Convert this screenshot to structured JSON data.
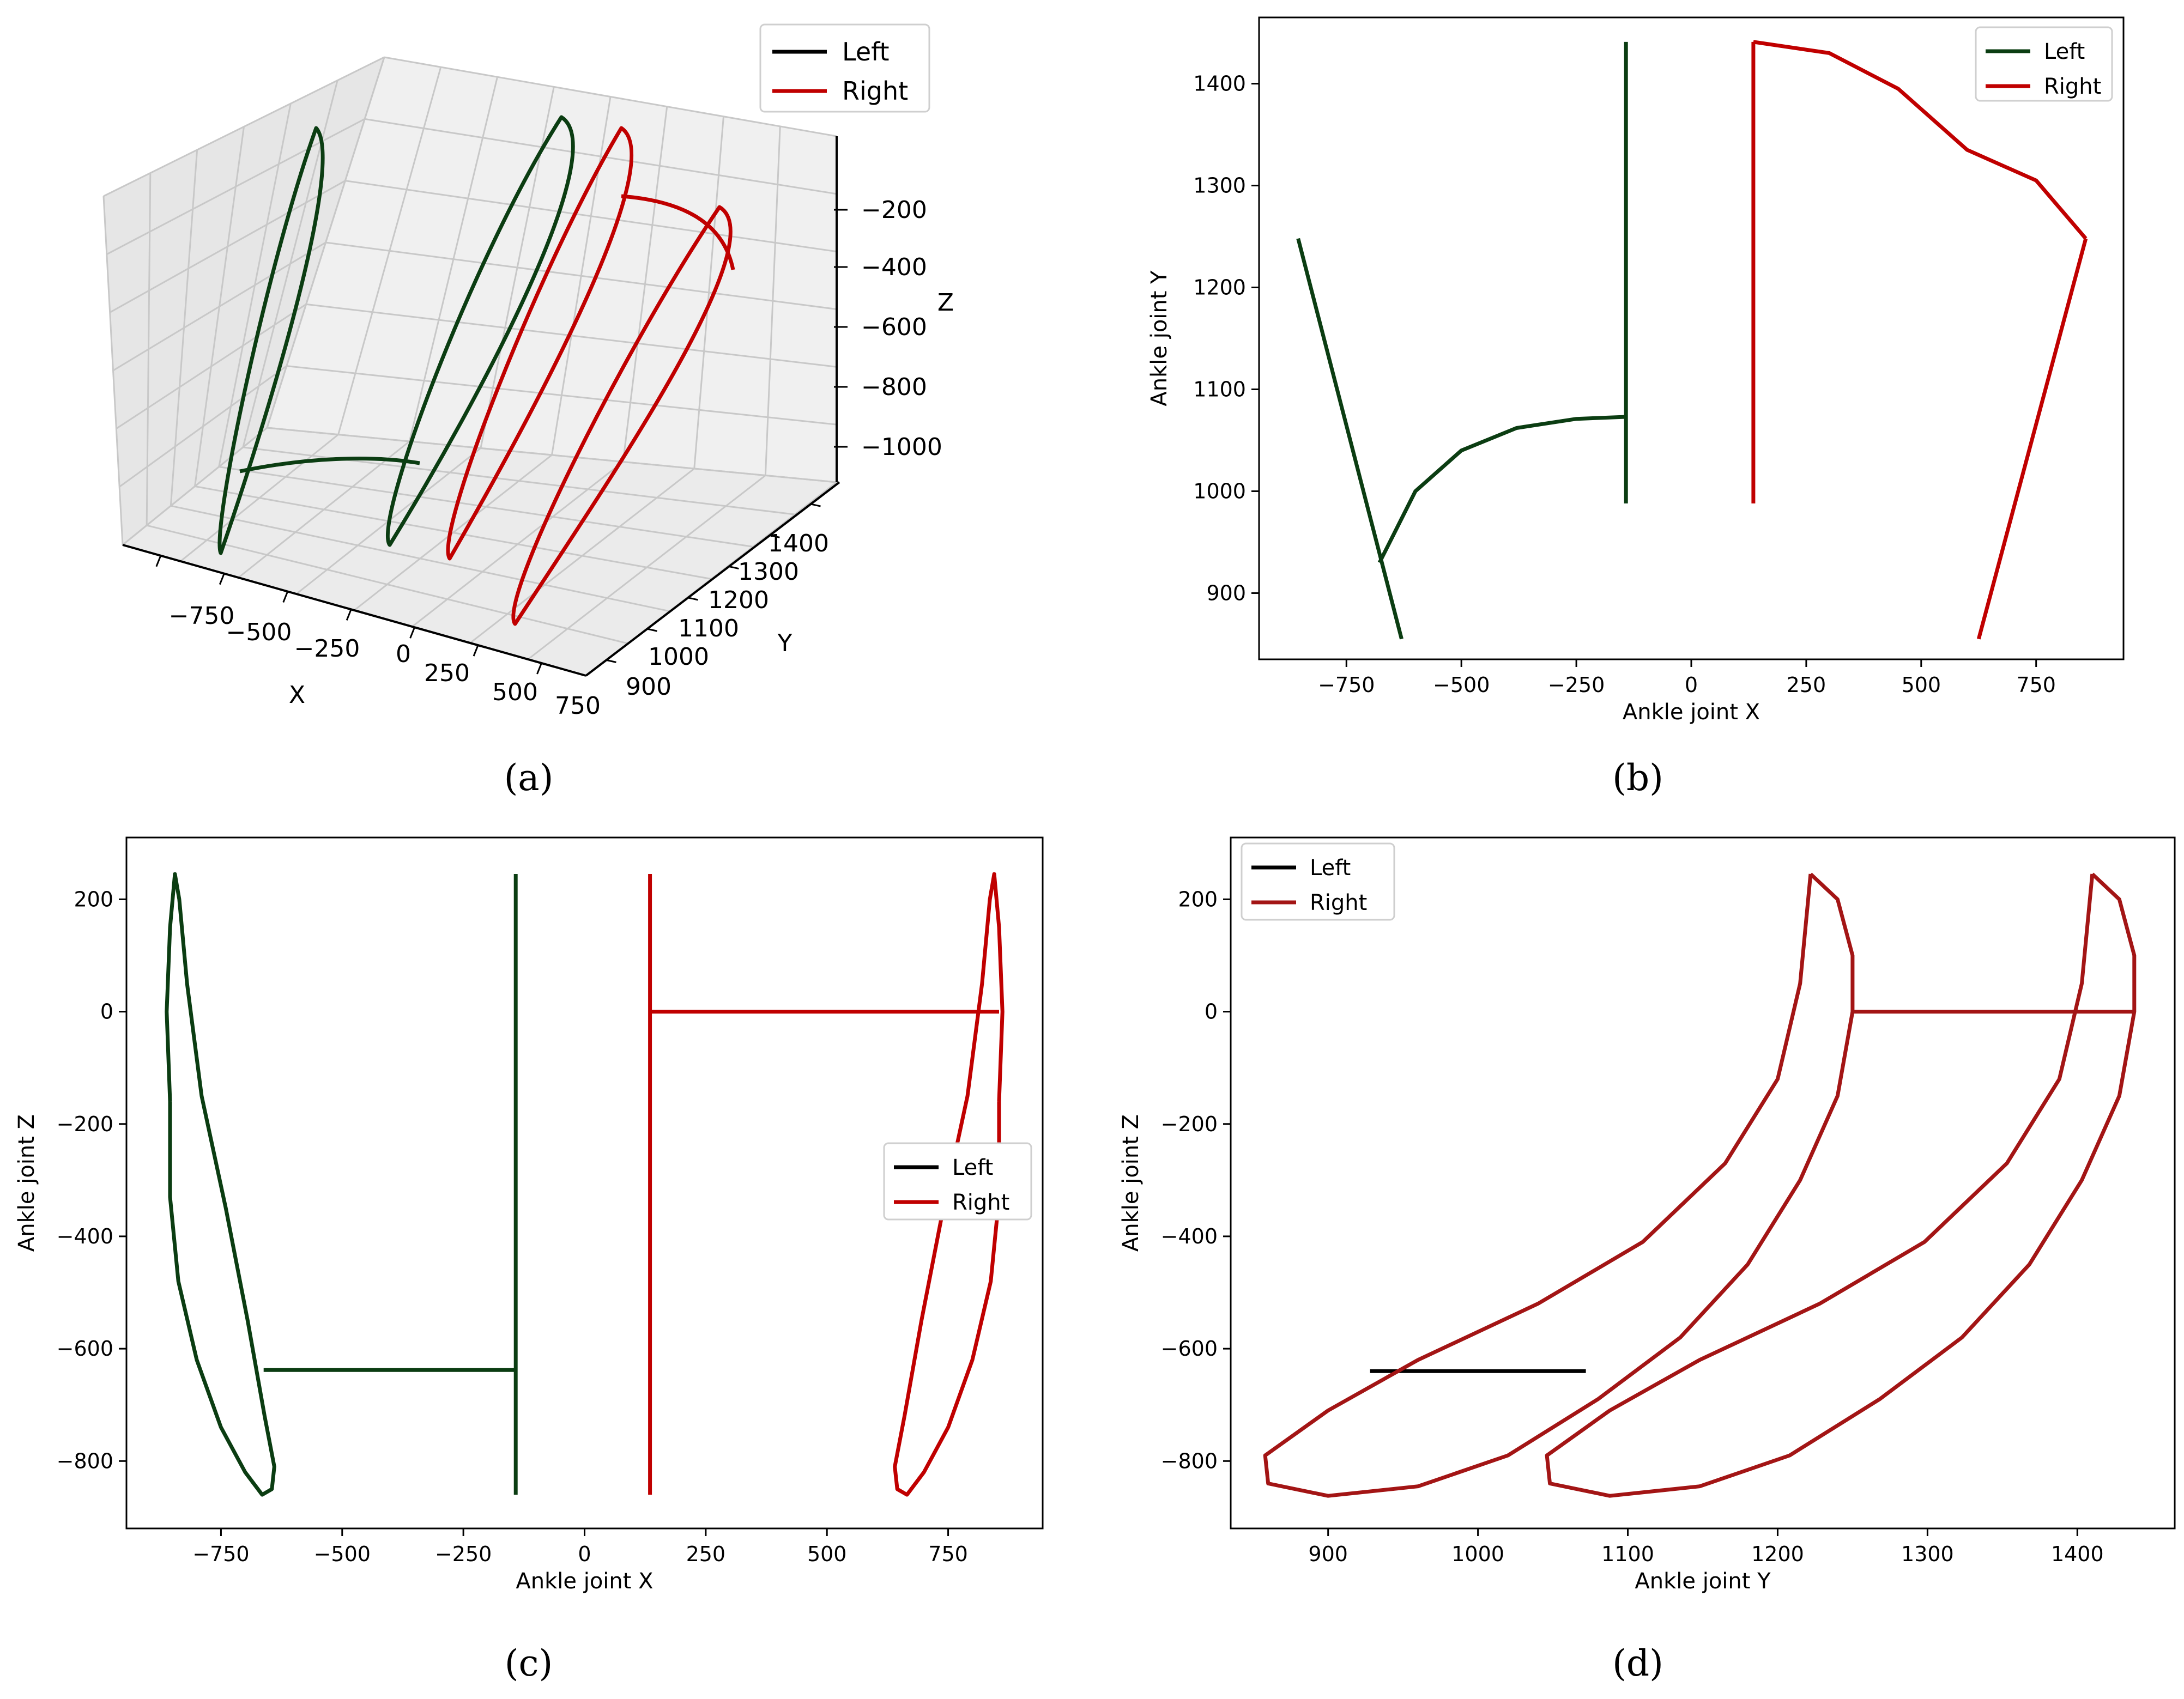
{
  "captions": [
    "(a)",
    "(b)",
    "(c)",
    "(d)"
  ],
  "colors": {
    "left": "#0b3d12",
    "left_legend": "#000000",
    "right": "#c00000",
    "right_d": "#a31515"
  },
  "chart_data": [
    {
      "panel": "a",
      "type": "line3d",
      "xlabel": "X",
      "ylabel": "Y",
      "zlabel": "Z",
      "x_ticks": [
        "−750",
        "−500",
        "−250",
        "0",
        "250",
        "500",
        "750"
      ],
      "y_ticks": [
        "900",
        "1000",
        "1100",
        "1200",
        "1300",
        "1400"
      ],
      "z_ticks": [
        "−200",
        "−400",
        "−600",
        "−800",
        "−1000"
      ],
      "legend": {
        "position": "upper right",
        "entries": [
          "Left",
          "Right"
        ]
      },
      "series": [
        {
          "name": "Left",
          "traces": [
            {
              "kind": "loop",
              "x": -850,
              "y_range": [
                860,
                1250
              ],
              "z_range": [
                -1050,
                -80
              ]
            },
            {
              "kind": "loop",
              "x": -140,
              "y_range": [
                900,
                1440
              ],
              "z_range": [
                -1050,
                -80
              ]
            },
            {
              "kind": "arc",
              "x": [
                -850,
                -140
              ],
              "y": [
                930,
                1075
              ],
              "z": -700
            }
          ]
        },
        {
          "name": "Right",
          "traces": [
            {
              "kind": "loop",
              "x": 140,
              "y_range": [
                900,
                1440
              ],
              "z_range": [
                -1050,
                -80
              ]
            },
            {
              "kind": "loop",
              "x": 850,
              "y_range": [
                860,
                1250
              ],
              "z_range": [
                -1050,
                -80
              ]
            },
            {
              "kind": "arc",
              "x": [
                140,
                850
              ],
              "y": [
                1440,
                1250
              ],
              "z": -150
            }
          ]
        }
      ]
    },
    {
      "panel": "b",
      "type": "line",
      "xlabel": "Ankle joint X",
      "ylabel": "Ankle joint Y",
      "xlim": [
        -940,
        940
      ],
      "ylim": [
        835,
        1465
      ],
      "x_ticks": [
        -750,
        -500,
        -250,
        0,
        250,
        500,
        750
      ],
      "y_ticks": [
        900,
        1000,
        1100,
        1200,
        1300,
        1400
      ],
      "legend": {
        "position": "upper right",
        "entries": [
          "Left",
          "Right"
        ]
      },
      "series": [
        {
          "name": "Left",
          "segments": [
            [
              [
                -855,
                1248
              ],
              [
                -630,
                855
              ]
            ],
            [
              [
                -678,
                930
              ],
              [
                -600,
                1000
              ],
              [
                -500,
                1040
              ],
              [
                -380,
                1062
              ],
              [
                -250,
                1071
              ],
              [
                -142,
                1073
              ]
            ],
            [
              [
                -142,
                988
              ],
              [
                -142,
                1441
              ]
            ]
          ]
        },
        {
          "name": "Right",
          "segments": [
            [
              [
                135,
                988
              ],
              [
                135,
                1441
              ]
            ],
            [
              [
                135,
                1441
              ],
              [
                300,
                1430
              ],
              [
                450,
                1395
              ],
              [
                600,
                1335
              ],
              [
                750,
                1305
              ],
              [
                858,
                1248
              ]
            ],
            [
              [
                858,
                1248
              ],
              [
                625,
                855
              ]
            ]
          ]
        }
      ]
    },
    {
      "panel": "c",
      "type": "line",
      "xlabel": "Ankle joint X",
      "ylabel": "Ankle joint Z",
      "xlim": [
        -945,
        945
      ],
      "ylim": [
        -920,
        310
      ],
      "x_ticks": [
        -750,
        -500,
        -250,
        0,
        250,
        500,
        750
      ],
      "y_ticks": [
        200,
        0,
        -200,
        -400,
        -600,
        -800
      ],
      "legend": {
        "position": "center right",
        "entries": [
          "Left",
          "Right"
        ]
      },
      "series": [
        {
          "name": "Left",
          "segments": [
            [
              [
                -855,
                -160
              ],
              [
                -862,
                0
              ],
              [
                -855,
                150
              ],
              [
                -845,
                245
              ],
              [
                -836,
                200
              ],
              [
                -820,
                50
              ],
              [
                -790,
                -150
              ],
              [
                -740,
                -350
              ],
              [
                -695,
                -550
              ],
              [
                -660,
                -720
              ],
              [
                -640,
                -810
              ],
              [
                -645,
                -850
              ],
              [
                -665,
                -860
              ],
              [
                -700,
                -820
              ],
              [
                -750,
                -740
              ],
              [
                -800,
                -620
              ],
              [
                -838,
                -480
              ],
              [
                -855,
                -330
              ],
              [
                -855,
                -160
              ]
            ],
            [
              [
                -662,
                -638
              ],
              [
                -142,
                -638
              ]
            ],
            [
              [
                -142,
                -860
              ],
              [
                -142,
                245
              ]
            ]
          ]
        },
        {
          "name": "Right",
          "segments": [
            [
              [
                135,
                -860
              ],
              [
                135,
                245
              ]
            ],
            [
              [
                135,
                0
              ],
              [
                855,
                0
              ]
            ],
            [
              [
                855,
                -160
              ],
              [
                862,
                0
              ],
              [
                855,
                150
              ],
              [
                845,
                245
              ],
              [
                836,
                200
              ],
              [
                820,
                50
              ],
              [
                790,
                -150
              ],
              [
                740,
                -350
              ],
              [
                695,
                -550
              ],
              [
                660,
                -720
              ],
              [
                640,
                -810
              ],
              [
                645,
                -850
              ],
              [
                665,
                -860
              ],
              [
                700,
                -820
              ],
              [
                750,
                -740
              ],
              [
                800,
                -620
              ],
              [
                838,
                -480
              ],
              [
                855,
                -330
              ],
              [
                855,
                -160
              ]
            ]
          ]
        }
      ]
    },
    {
      "panel": "d",
      "type": "line",
      "xlabel": "Ankle joint Y",
      "ylabel": "Ankle joint Z",
      "xlim": [
        835,
        1465
      ],
      "ylim": [
        -920,
        310
      ],
      "x_ticks": [
        900,
        1000,
        1100,
        1200,
        1300,
        1400
      ],
      "y_ticks": [
        200,
        0,
        -200,
        -400,
        -600,
        -800
      ],
      "legend": {
        "position": "upper left",
        "entries": [
          "Left",
          "Right"
        ]
      },
      "series": [
        {
          "name": "Left",
          "segments": [
            [
              [
                928,
                -640
              ],
              [
                1072,
                -640
              ]
            ]
          ]
        },
        {
          "name": "Right",
          "segments": [
            [
              [
                1222,
                245
              ],
              [
                1240,
                200
              ],
              [
                1250,
                100
              ],
              [
                1250,
                0
              ],
              [
                1240,
                -150
              ],
              [
                1215,
                -300
              ],
              [
                1180,
                -450
              ],
              [
                1135,
                -580
              ],
              [
                1080,
                -690
              ],
              [
                1020,
                -790
              ],
              [
                960,
                -845
              ],
              [
                900,
                -862
              ],
              [
                860,
                -840
              ],
              [
                858,
                -790
              ],
              [
                900,
                -710
              ],
              [
                960,
                -620
              ],
              [
                1040,
                -520
              ],
              [
                1110,
                -410
              ],
              [
                1165,
                -270
              ],
              [
                1200,
                -120
              ],
              [
                1215,
                50
              ],
              [
                1222,
                245
              ]
            ],
            [
              [
                1410,
                245
              ],
              [
                1428,
                200
              ],
              [
                1438,
                100
              ],
              [
                1438,
                0
              ],
              [
                1428,
                -150
              ],
              [
                1403,
                -300
              ],
              [
                1368,
                -450
              ],
              [
                1323,
                -580
              ],
              [
                1268,
                -690
              ],
              [
                1208,
                -790
              ],
              [
                1148,
                -845
              ],
              [
                1088,
                -862
              ],
              [
                1048,
                -840
              ],
              [
                1046,
                -790
              ],
              [
                1088,
                -710
              ],
              [
                1148,
                -620
              ],
              [
                1228,
                -520
              ],
              [
                1298,
                -410
              ],
              [
                1353,
                -270
              ],
              [
                1388,
                -120
              ],
              [
                1403,
                50
              ],
              [
                1410,
                245
              ]
            ],
            [
              [
                1250,
                0
              ],
              [
                1438,
                0
              ]
            ]
          ]
        }
      ]
    }
  ]
}
